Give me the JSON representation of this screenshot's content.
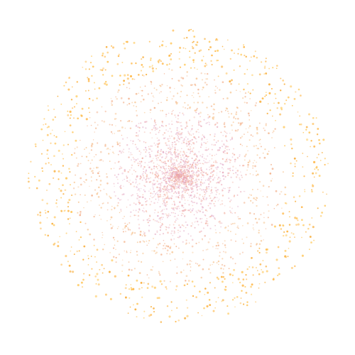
{
  "scene": {
    "background_color": "#ffffff",
    "palette": {
      "core": [
        "#e8a0b0",
        "#f0a898",
        "#e0a8c8",
        "#f4b0a0",
        "#eab4c4"
      ],
      "middle": [
        "#f4b890",
        "#f6c088",
        "#f2a880",
        "#f8c898"
      ],
      "outer": [
        "#ffc860",
        "#ffb84a",
        "#ffd070",
        "#f8b040",
        "#ffcf80"
      ]
    },
    "approx_dot_count": 3200
  }
}
